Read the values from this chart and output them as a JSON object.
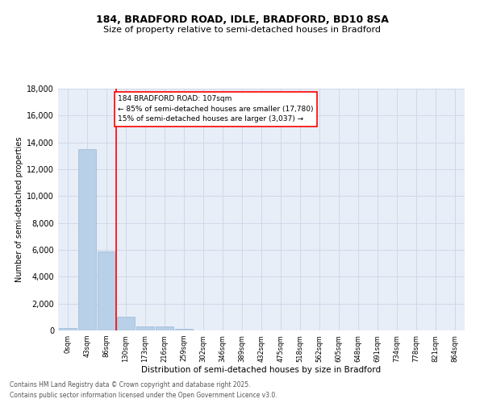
{
  "title_line1": "184, BRADFORD ROAD, IDLE, BRADFORD, BD10 8SA",
  "title_line2": "Size of property relative to semi-detached houses in Bradford",
  "xlabel": "Distribution of semi-detached houses by size in Bradford",
  "ylabel": "Number of semi-detached properties",
  "annotation_title": "184 BRADFORD ROAD: 107sqm",
  "annotation_line2": "← 85% of semi-detached houses are smaller (17,780)",
  "annotation_line3": "15% of semi-detached houses are larger (3,037) →",
  "footnote1": "Contains HM Land Registry data © Crown copyright and database right 2025.",
  "footnote2": "Contains public sector information licensed under the Open Government Licence v3.0.",
  "bin_labels": [
    "0sqm",
    "43sqm",
    "86sqm",
    "130sqm",
    "173sqm",
    "216sqm",
    "259sqm",
    "302sqm",
    "346sqm",
    "389sqm",
    "432sqm",
    "475sqm",
    "518sqm",
    "562sqm",
    "605sqm",
    "648sqm",
    "691sqm",
    "734sqm",
    "778sqm",
    "821sqm",
    "864sqm"
  ],
  "bar_values": [
    200,
    13500,
    5900,
    1000,
    320,
    300,
    150,
    0,
    0,
    0,
    0,
    0,
    0,
    0,
    0,
    0,
    0,
    0,
    0,
    0,
    0
  ],
  "bar_color": "#b8d0e8",
  "bar_edge_color": "#9ab8d8",
  "grid_color": "#d0d8e8",
  "background_color": "#e8eef8",
  "redline_x": 2.5,
  "ylim": [
    0,
    18000
  ],
  "yticks": [
    0,
    2000,
    4000,
    6000,
    8000,
    10000,
    12000,
    14000,
    16000,
    18000
  ]
}
